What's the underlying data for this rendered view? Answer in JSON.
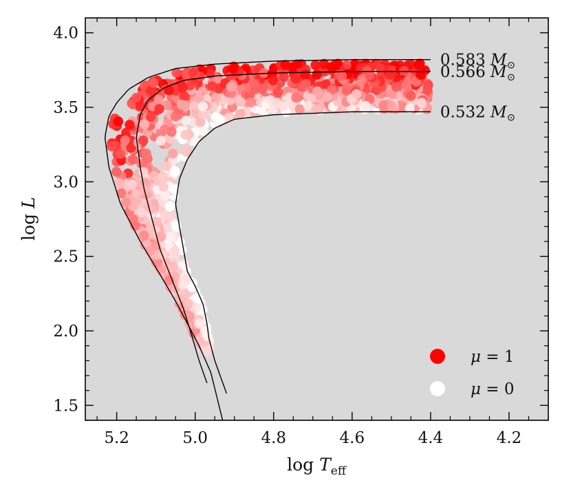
{
  "chart_data": {
    "type": "scatter",
    "title": "",
    "xlabel": "log T_eff",
    "ylabel": "log L",
    "xlim": [
      5.28,
      4.1
    ],
    "ylim": [
      1.4,
      4.1
    ],
    "x_inverted": true,
    "background_color": "#d9d9d9",
    "xticks": [
      5.2,
      5.0,
      4.8,
      4.6,
      4.4,
      4.2
    ],
    "xtick_labels": [
      "5.2",
      "5.0",
      "4.8",
      "4.6",
      "4.4",
      "4.2"
    ],
    "yticks": [
      1.5,
      2.0,
      2.5,
      3.0,
      3.5,
      4.0
    ],
    "ytick_labels": [
      "1.5",
      "2.0",
      "2.5",
      "3.0",
      "3.5",
      "4.0"
    ],
    "tracks": [
      {
        "mass": "0.583",
        "unit": "M",
        "label_text": "0.583 M⊙",
        "x": [
          4.4,
          4.6,
          4.8,
          4.95,
          5.05,
          5.12,
          5.17,
          5.2,
          5.22,
          5.23,
          5.22,
          5.19,
          5.14,
          5.09,
          5.05,
          5.02,
          4.99,
          4.96,
          4.93
        ],
        "y": [
          3.82,
          3.82,
          3.81,
          3.79,
          3.76,
          3.7,
          3.62,
          3.53,
          3.44,
          3.3,
          3.1,
          2.85,
          2.6,
          2.38,
          2.2,
          2.05,
          1.9,
          1.72,
          1.4
        ]
      },
      {
        "mass": "0.566",
        "unit": "M",
        "label_text": "0.566 M⊙",
        "x": [
          4.4,
          4.6,
          4.8,
          4.95,
          5.03,
          5.08,
          5.12,
          5.14,
          5.15,
          5.14,
          5.13,
          5.11,
          5.09,
          5.06,
          5.03,
          5.01,
          4.99,
          4.97
        ],
        "y": [
          3.74,
          3.74,
          3.73,
          3.71,
          3.68,
          3.63,
          3.55,
          3.45,
          3.3,
          3.1,
          2.95,
          2.75,
          2.55,
          2.35,
          2.15,
          1.98,
          1.8,
          1.65
        ]
      },
      {
        "mass": "0.532",
        "unit": "M",
        "label_text": "0.532 M⊙",
        "x": [
          4.4,
          4.6,
          4.8,
          4.9,
          4.95,
          4.99,
          5.02,
          5.04,
          5.05,
          5.04,
          5.03,
          5.02,
          5.0,
          4.98,
          4.97,
          4.965,
          4.95,
          4.92
        ],
        "y": [
          3.47,
          3.47,
          3.45,
          3.42,
          3.36,
          3.27,
          3.15,
          3.02,
          2.85,
          2.7,
          2.55,
          2.4,
          2.3,
          2.18,
          2.05,
          1.95,
          1.8,
          1.58
        ]
      }
    ],
    "color_scale": {
      "name": "mu",
      "min": 0,
      "max": 1,
      "min_color": "#ffffff",
      "max_color": "#ff0000"
    },
    "legend": {
      "position": "lower-right",
      "entries": [
        {
          "label": "μ = 1",
          "mu": 1,
          "color": "#ff0000"
        },
        {
          "label": "μ = 0",
          "mu": 0,
          "color": "#ffffff"
        }
      ]
    },
    "scatter_sampling": {
      "count": 1300,
      "seed": 20240517,
      "description": "synthetic points filling the band between the 0.532 and 0.583 tracks",
      "band_fraction": [
        0.0,
        1.0
      ],
      "t_range": [
        0.0,
        1.0
      ]
    }
  }
}
